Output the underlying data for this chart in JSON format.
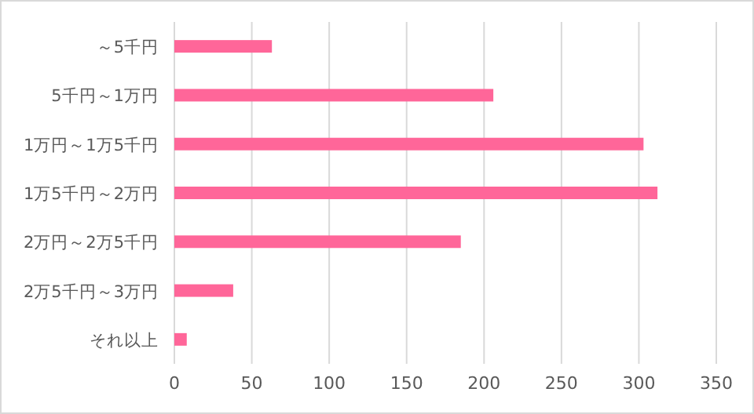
{
  "chart_data": {
    "type": "bar",
    "orientation": "horizontal",
    "categories": [
      "～5千円",
      "5千円～1万円",
      "1万円～1万5千円",
      "1万5千円～2万円",
      "2万円～2万5千円",
      "2万5千円～3万円",
      "それ以上"
    ],
    "values": [
      63,
      206,
      303,
      312,
      185,
      38,
      8
    ],
    "color": "#ff6699",
    "xlim": [
      0,
      350
    ],
    "xticks": [
      0,
      50,
      100,
      150,
      200,
      250,
      300,
      350
    ],
    "grid": "x"
  }
}
